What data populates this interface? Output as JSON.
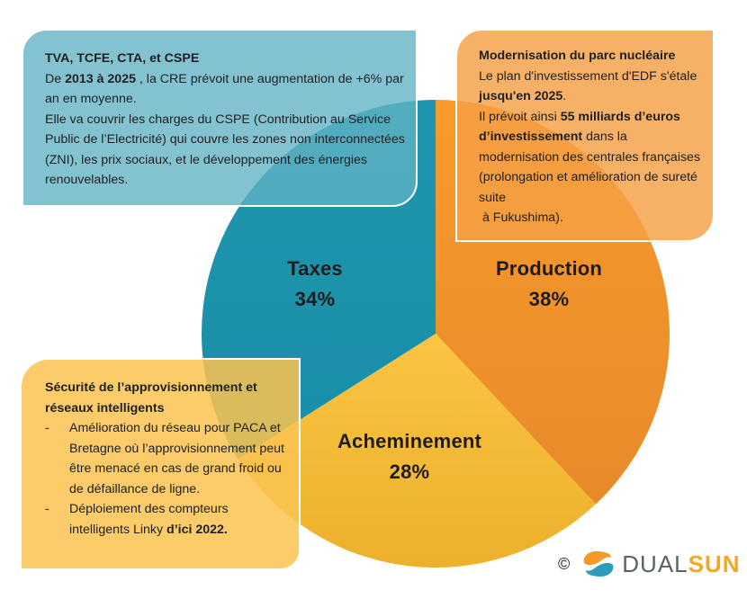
{
  "chart_data": {
    "type": "pie",
    "title": "",
    "categories": [
      "Production",
      "Acheminement",
      "Taxes"
    ],
    "values": [
      38,
      28,
      34
    ],
    "unit": "%",
    "colors": [
      "#f7962b",
      "#f8bd3a",
      "#1f93ac"
    ],
    "start_angle_deg_from_top": 0,
    "direction": "clockwise",
    "labels": [
      {
        "name": "Production",
        "value": "38%"
      },
      {
        "name": "Acheminement",
        "value": "28%"
      },
      {
        "name": "Taxes",
        "value": "34%"
      }
    ]
  },
  "slices": {
    "production": {
      "name": "Production",
      "pct": "38%"
    },
    "acheminement": {
      "name": "Acheminement",
      "pct": "28%"
    },
    "taxes": {
      "name": "Taxes",
      "pct": "34%"
    }
  },
  "boxes": {
    "taxes": {
      "title": "TVA, TCFE, CTA, et CSPE",
      "line1_pre": "De ",
      "line1_bold": "2013 à 2025",
      "line1_post": " , la CRE prévoit une augmentation de +6% par an en moyenne.",
      "line2": "Elle va couvrir les charges du CSPE (Contribution au Service Public de l’Electricité) qui couvre les zones non interconnectées (ZNI), les prix sociaux, et le développement des énergies renouvelables."
    },
    "production": {
      "title": "Modernisation du parc nucléaire",
      "line1": "Le plan d'investissement d'EDF s'étale ",
      "line1_bold": "jusqu'en 2025",
      "line1_post": ".",
      "line2_pre": "Il prévoit ainsi ",
      "line2_bold": "55 milliards d’euros d’investissement",
      "line2_post": " dans la modernisation des centrales françaises (prolongation et amélioration de sureté suite",
      "line3": " à Fukushima)."
    },
    "acheminement": {
      "title": "Sécurité de l’approvisionnement et réseaux intelligents",
      "bullet_char": "-",
      "bullet1": "Amélioration du réseau pour PACA et Bretagne où l’approvisionnement peut être menacé en cas de grand froid ou de défaillance de ligne.",
      "bullet2_pre": "Déploiement des compteurs intelligents Linky ",
      "bullet2_bold": "d’ici 2022."
    }
  },
  "footer": {
    "copyright": "©",
    "logo_part1": "DUAL",
    "logo_part2": "SUN",
    "logo_colors": {
      "dual": "#5a6268",
      "sun": "#f5a623",
      "mark_orange": "#f39a2a",
      "mark_blue": "#2b9fba"
    }
  }
}
